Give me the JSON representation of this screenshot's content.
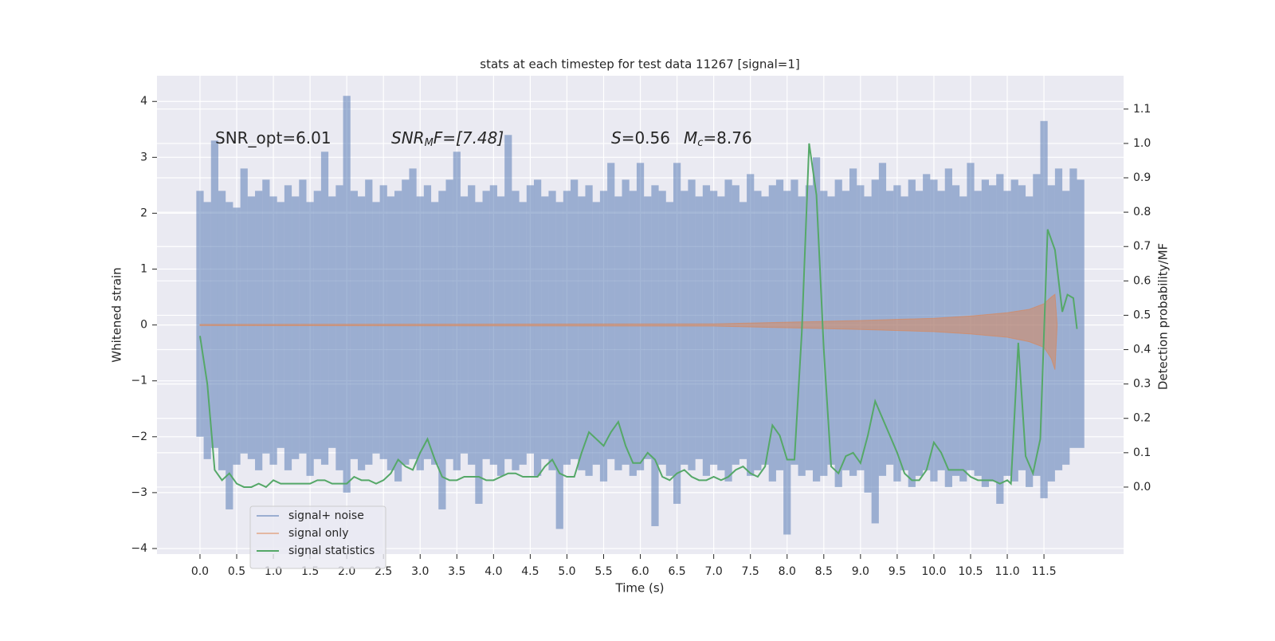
{
  "chart_data": {
    "type": "line",
    "title": "stats at each timestep for test data 11267 [signal=1]",
    "xlabel": "Time (s)",
    "ylabel": "Whitened strain",
    "y2label": "Detection probability/MF",
    "annotations": [
      [
        "SNR_opt=6.01"
      ],
      [
        "SNR",
        "M",
        "F=[7.48]"
      ],
      [
        "S",
        "=0.56"
      ],
      [
        "M",
        "c",
        "=8.76"
      ]
    ],
    "xlim": [
      -0.586,
      12.585
    ],
    "ylim": [
      -4.1,
      4.46
    ],
    "y2lim": [
      -0.195,
      1.197
    ],
    "xticks": [
      {
        "value": 0,
        "label": "0.0"
      },
      0.5,
      {
        "value": 1,
        "label": "1.0"
      },
      1.5,
      {
        "value": 2,
        "label": "2.0"
      },
      2.5,
      {
        "value": 3,
        "label": "3.0"
      },
      3.5,
      {
        "value": 4,
        "label": "4.0"
      },
      4.5,
      {
        "value": 5,
        "label": "5.0"
      },
      5.5,
      {
        "value": 6,
        "label": "6.0"
      },
      6.5,
      {
        "value": 7,
        "label": "7.0"
      },
      7.5,
      {
        "value": 8,
        "label": "8.0"
      },
      8.5,
      {
        "value": 9,
        "label": "9.0"
      },
      9.5,
      {
        "value": 10,
        "label": "10.0"
      },
      10.5,
      {
        "value": 11,
        "label": "11.0"
      },
      11.5
    ],
    "yticks": [
      {
        "value": -4,
        "label": "−4"
      },
      {
        "value": -3,
        "label": "−3"
      },
      {
        "value": -2,
        "label": "−2"
      },
      {
        "value": -1,
        "label": "−1"
      },
      0,
      1,
      2,
      3,
      4
    ],
    "y2ticks": [
      {
        "value": 0,
        "label": "0.0"
      },
      0.1,
      0.2,
      0.3,
      0.4,
      0.5,
      0.6,
      0.7,
      0.8,
      0.9,
      {
        "value": 1,
        "label": "1.0"
      },
      1.1
    ],
    "grid": true,
    "legend": "lower left",
    "series": [
      {
        "name": "signal+ noise",
        "color": "#4c72b0",
        "x": [
          0.0,
          0.1,
          0.2,
          0.3,
          0.4,
          0.5,
          0.6,
          0.7,
          0.8,
          0.9,
          1.0,
          1.1,
          1.2,
          1.3,
          1.4,
          1.5,
          1.6,
          1.7,
          1.8,
          1.9,
          2.0,
          2.1,
          2.2,
          2.3,
          2.4,
          2.5,
          2.6,
          2.7,
          2.8,
          2.9,
          3.0,
          3.1,
          3.2,
          3.3,
          3.4,
          3.5,
          3.6,
          3.7,
          3.8,
          3.9,
          4.0,
          4.1,
          4.2,
          4.3,
          4.4,
          4.5,
          4.6,
          4.7,
          4.8,
          4.9,
          5.0,
          5.1,
          5.2,
          5.3,
          5.4,
          5.5,
          5.6,
          5.7,
          5.8,
          5.9,
          6.0,
          6.1,
          6.2,
          6.3,
          6.4,
          6.5,
          6.6,
          6.7,
          6.8,
          6.9,
          7.0,
          7.1,
          7.2,
          7.3,
          7.4,
          7.5,
          7.6,
          7.7,
          7.8,
          7.9,
          8.0,
          8.1,
          8.2,
          8.3,
          8.4,
          8.5,
          8.6,
          8.7,
          8.8,
          8.9,
          9.0,
          9.1,
          9.2,
          9.3,
          9.4,
          9.5,
          9.6,
          9.7,
          9.8,
          9.9,
          10.0,
          10.1,
          10.2,
          10.3,
          10.4,
          10.5,
          10.6,
          10.7,
          10.8,
          10.9,
          11.0,
          11.1,
          11.2,
          11.3,
          11.4,
          11.5,
          11.6,
          11.7,
          11.8,
          11.9,
          12.0
        ],
        "high": [
          2.4,
          2.2,
          3.3,
          2.4,
          2.2,
          2.1,
          2.8,
          2.3,
          2.4,
          2.6,
          2.3,
          2.2,
          2.5,
          2.3,
          2.6,
          2.2,
          2.4,
          3.1,
          2.3,
          2.5,
          4.1,
          2.4,
          2.3,
          2.6,
          2.2,
          2.5,
          2.3,
          2.4,
          2.6,
          2.8,
          2.3,
          2.5,
          2.2,
          2.4,
          2.6,
          3.1,
          2.3,
          2.5,
          2.2,
          2.4,
          2.5,
          2.3,
          3.4,
          2.4,
          2.2,
          2.5,
          2.6,
          2.3,
          2.4,
          2.2,
          2.4,
          2.6,
          2.3,
          2.5,
          2.2,
          2.4,
          2.9,
          2.3,
          2.6,
          2.4,
          2.9,
          2.3,
          2.5,
          2.4,
          2.2,
          2.9,
          2.4,
          2.6,
          2.3,
          2.5,
          2.4,
          2.3,
          2.6,
          2.5,
          2.2,
          2.7,
          2.4,
          2.3,
          2.5,
          2.6,
          2.4,
          2.6,
          2.3,
          2.5,
          3.0,
          2.4,
          2.3,
          2.6,
          2.4,
          2.8,
          2.5,
          2.3,
          2.6,
          2.9,
          2.4,
          2.5,
          2.3,
          2.6,
          2.4,
          2.7,
          2.6,
          2.4,
          2.8,
          2.5,
          2.3,
          2.9,
          2.4,
          2.6,
          2.5,
          2.7,
          2.4,
          2.6,
          2.5,
          2.3,
          2.7,
          3.65,
          2.5,
          2.8,
          2.4,
          2.8,
          2.6
        ],
        "low": [
          -2.0,
          -2.4,
          -2.2,
          -2.6,
          -3.3,
          -2.5,
          -2.3,
          -2.4,
          -2.6,
          -2.3,
          -2.5,
          -2.2,
          -2.6,
          -2.4,
          -2.3,
          -2.7,
          -2.4,
          -2.5,
          -2.2,
          -2.6,
          -3.0,
          -2.4,
          -2.6,
          -2.5,
          -2.3,
          -2.4,
          -2.6,
          -2.8,
          -2.5,
          -2.4,
          -2.6,
          -2.4,
          -2.5,
          -3.3,
          -2.4,
          -2.6,
          -2.3,
          -2.5,
          -3.2,
          -2.4,
          -2.5,
          -2.7,
          -2.4,
          -2.6,
          -2.5,
          -2.3,
          -2.7,
          -2.4,
          -2.6,
          -3.65,
          -2.5,
          -2.4,
          -2.6,
          -2.7,
          -2.5,
          -2.8,
          -2.4,
          -2.6,
          -2.5,
          -2.7,
          -2.6,
          -2.4,
          -3.6,
          -2.5,
          -2.7,
          -3.2,
          -2.5,
          -2.6,
          -2.4,
          -2.7,
          -2.5,
          -2.6,
          -2.8,
          -2.5,
          -2.4,
          -2.7,
          -2.6,
          -2.5,
          -2.8,
          -2.6,
          -3.75,
          -2.5,
          -2.7,
          -2.6,
          -2.8,
          -2.7,
          -2.5,
          -2.9,
          -2.6,
          -2.7,
          -2.6,
          -3.0,
          -3.55,
          -2.7,
          -2.5,
          -2.8,
          -2.6,
          -2.9,
          -2.7,
          -2.6,
          -2.8,
          -2.6,
          -2.9,
          -2.7,
          -2.8,
          -2.6,
          -2.7,
          -2.9,
          -2.8,
          -3.2,
          -2.7,
          -2.8,
          -2.6,
          -2.9,
          -2.7,
          -3.1,
          -2.8,
          -2.6,
          -2.5,
          -2.2,
          -2.2
        ]
      },
      {
        "name": "signal only",
        "color": "#dd8452",
        "x": [
          0,
          7,
          8,
          9,
          10,
          10.5,
          11,
          11.3,
          11.5,
          11.6,
          11.65,
          11.68
        ],
        "high": [
          0.01,
          0.02,
          0.05,
          0.08,
          0.12,
          0.16,
          0.22,
          0.28,
          0.38,
          0.5,
          0.55,
          0
        ],
        "low": [
          -0.01,
          -0.02,
          -0.05,
          -0.08,
          -0.12,
          -0.16,
          -0.22,
          -0.3,
          -0.4,
          -0.6,
          -0.8,
          0
        ]
      },
      {
        "name": "signal statistics",
        "color": "#55a868",
        "axis": "y2",
        "x": [
          0.0,
          0.1,
          0.2,
          0.3,
          0.4,
          0.5,
          0.6,
          0.7,
          0.8,
          0.9,
          1.0,
          1.1,
          1.2,
          1.3,
          1.4,
          1.5,
          1.6,
          1.7,
          1.8,
          1.9,
          2.0,
          2.1,
          2.2,
          2.3,
          2.4,
          2.5,
          2.6,
          2.7,
          2.8,
          2.9,
          3.0,
          3.1,
          3.2,
          3.3,
          3.4,
          3.5,
          3.6,
          3.7,
          3.8,
          3.9,
          4.0,
          4.1,
          4.2,
          4.3,
          4.4,
          4.5,
          4.6,
          4.7,
          4.8,
          4.9,
          5.0,
          5.1,
          5.2,
          5.3,
          5.4,
          5.5,
          5.6,
          5.7,
          5.8,
          5.9,
          6.0,
          6.1,
          6.2,
          6.3,
          6.4,
          6.5,
          6.6,
          6.7,
          6.8,
          6.9,
          7.0,
          7.1,
          7.2,
          7.3,
          7.4,
          7.5,
          7.6,
          7.7,
          7.8,
          7.9,
          8.0,
          8.1,
          8.2,
          8.3,
          8.4,
          8.5,
          8.6,
          8.7,
          8.8,
          8.9,
          9.0,
          9.1,
          9.2,
          9.3,
          9.4,
          9.5,
          9.6,
          9.7,
          9.8,
          9.9,
          10.0,
          10.1,
          10.2,
          10.3,
          10.4,
          10.5,
          10.6,
          10.7,
          10.8,
          10.9,
          11.0,
          11.05,
          11.15,
          11.25,
          11.35,
          11.45,
          11.55,
          11.65,
          11.75,
          11.82,
          11.9,
          11.95
        ],
        "values": [
          0.44,
          0.3,
          0.05,
          0.02,
          0.04,
          0.01,
          0,
          0,
          0.01,
          0,
          0.02,
          0.01,
          0.01,
          0.01,
          0.01,
          0.01,
          0.02,
          0.02,
          0.01,
          0.01,
          0.01,
          0.03,
          0.02,
          0.02,
          0.01,
          0.02,
          0.04,
          0.08,
          0.06,
          0.05,
          0.1,
          0.14,
          0.08,
          0.03,
          0.02,
          0.02,
          0.03,
          0.03,
          0.03,
          0.02,
          0.02,
          0.03,
          0.04,
          0.04,
          0.03,
          0.03,
          0.03,
          0.06,
          0.08,
          0.04,
          0.03,
          0.03,
          0.1,
          0.16,
          0.14,
          0.12,
          0.16,
          0.19,
          0.12,
          0.07,
          0.07,
          0.1,
          0.08,
          0.03,
          0.02,
          0.04,
          0.05,
          0.03,
          0.02,
          0.02,
          0.03,
          0.02,
          0.03,
          0.05,
          0.06,
          0.04,
          0.03,
          0.06,
          0.18,
          0.15,
          0.08,
          0.08,
          0.45,
          1.0,
          0.85,
          0.4,
          0.06,
          0.04,
          0.09,
          0.1,
          0.07,
          0.15,
          0.25,
          0.2,
          0.15,
          0.1,
          0.04,
          0.02,
          0.02,
          0.05,
          0.13,
          0.1,
          0.05,
          0.05,
          0.05,
          0.03,
          0.02,
          0.02,
          0.02,
          0.01,
          0.02,
          0.01,
          0.42,
          0.09,
          0.04,
          0.14,
          0.75,
          0.69,
          0.51,
          0.56,
          0.55,
          0.46
        ]
      }
    ]
  }
}
